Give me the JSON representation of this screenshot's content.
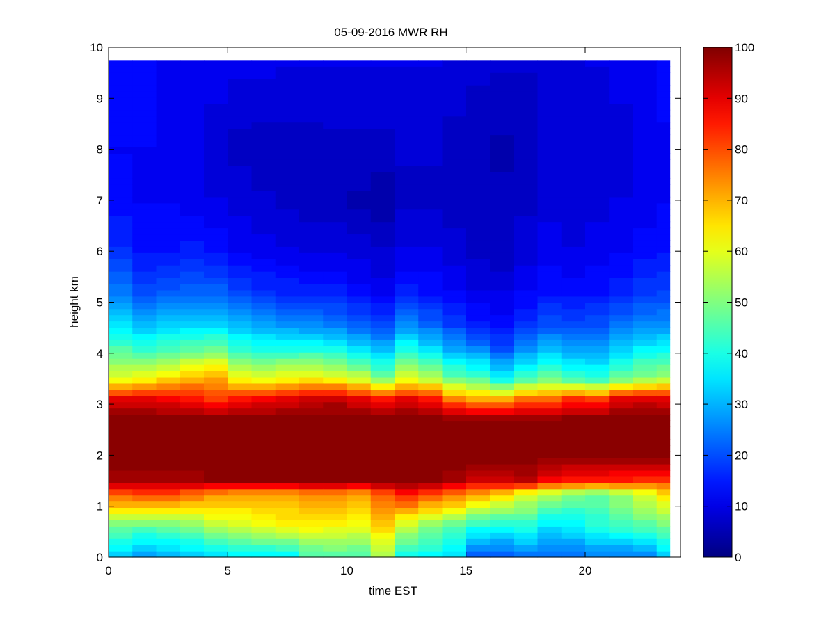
{
  "chart_data": {
    "type": "heatmap",
    "title": "05-09-2016 MWR RH",
    "xlabel": "time EST",
    "ylabel": "height km",
    "xlim": [
      0,
      24
    ],
    "ylim": [
      0,
      10
    ],
    "x_ticks": [
      "0",
      "5",
      "10",
      "15",
      "20"
    ],
    "y_ticks": [
      "0",
      "1",
      "2",
      "3",
      "4",
      "5",
      "6",
      "7",
      "8",
      "9",
      "10"
    ],
    "colorbar": {
      "min": 0,
      "max": 100,
      "ticks": [
        "0",
        "10",
        "20",
        "30",
        "40",
        "50",
        "60",
        "70",
        "80",
        "90",
        "100"
      ],
      "colormap": "jet"
    },
    "time_bins": [
      0,
      1,
      2,
      3,
      4,
      5,
      6,
      7,
      8,
      9,
      10,
      11,
      12,
      13,
      14,
      15,
      16,
      17,
      18,
      19,
      20,
      21,
      22,
      23
    ],
    "height_max_km": 9.75,
    "height_levels_km": [
      0.05,
      0.6,
      1.25,
      1.5,
      2.0,
      2.7,
      3.1,
      3.5,
      4.1,
      4.6,
      5.2,
      6.0,
      7.0,
      8.0,
      9.0,
      9.75
    ],
    "rh_percent": [
      [
        33,
        29,
        30,
        32,
        35,
        36,
        37,
        38,
        45,
        46,
        45,
        55,
        40,
        38,
        34,
        22,
        22,
        25,
        24,
        24,
        26,
        25,
        27,
        33
      ],
      [
        48,
        46,
        48,
        50,
        55,
        58,
        60,
        62,
        63,
        62,
        60,
        66,
        56,
        50,
        46,
        40,
        38,
        40,
        34,
        36,
        40,
        43,
        46,
        48
      ],
      [
        80,
        82,
        82,
        78,
        74,
        72,
        72,
        72,
        74,
        74,
        72,
        80,
        86,
        82,
        78,
        72,
        68,
        60,
        56,
        50,
        48,
        53,
        58,
        66
      ],
      [
        97,
        96,
        96,
        97,
        98,
        99,
        99,
        99,
        99,
        99,
        99,
        99,
        99,
        99,
        96,
        92,
        92,
        94,
        88,
        86,
        86,
        84,
        82,
        82
      ],
      [
        100,
        100,
        100,
        100,
        100,
        100,
        100,
        100,
        100,
        100,
        100,
        100,
        100,
        100,
        100,
        100,
        100,
        100,
        100,
        100,
        100,
        100,
        100,
        100
      ],
      [
        100,
        100,
        100,
        100,
        100,
        100,
        100,
        100,
        100,
        100,
        100,
        100,
        100,
        100,
        100,
        100,
        100,
        100,
        100,
        100,
        100,
        100,
        100,
        100
      ],
      [
        90,
        90,
        88,
        86,
        82,
        86,
        88,
        90,
        92,
        94,
        90,
        86,
        90,
        86,
        76,
        72,
        70,
        78,
        78,
        84,
        82,
        90,
        92,
        90
      ],
      [
        60,
        62,
        66,
        70,
        72,
        62,
        60,
        62,
        64,
        62,
        58,
        50,
        60,
        56,
        48,
        46,
        38,
        44,
        48,
        44,
        42,
        48,
        52,
        54
      ],
      [
        45,
        42,
        44,
        46,
        48,
        42,
        40,
        40,
        40,
        38,
        34,
        30,
        40,
        34,
        28,
        25,
        20,
        26,
        30,
        28,
        28,
        32,
        36,
        38
      ],
      [
        34,
        30,
        32,
        33,
        33,
        30,
        27,
        26,
        25,
        24,
        21,
        19,
        25,
        22,
        18,
        15,
        13,
        17,
        20,
        19,
        20,
        23,
        25,
        26
      ],
      [
        24,
        20,
        21,
        22,
        22,
        19,
        17,
        16,
        15,
        15,
        13,
        11,
        15,
        14,
        12,
        10,
        10,
        12,
        14,
        13,
        14,
        16,
        18,
        19
      ],
      [
        17,
        14,
        14,
        15,
        14,
        12,
        11,
        10,
        10,
        10,
        9,
        8,
        10,
        10,
        9,
        7,
        6,
        9,
        11,
        10,
        11,
        12,
        13,
        14
      ],
      [
        13,
        12,
        12,
        11,
        10,
        9,
        8,
        7,
        6,
        6,
        5,
        4,
        7,
        7,
        6,
        6,
        6,
        7,
        9,
        9,
        9,
        10,
        11,
        12
      ],
      [
        12,
        12,
        11,
        10,
        9,
        7,
        6,
        6,
        6,
        7,
        7,
        7,
        8,
        8,
        7,
        6,
        5,
        6,
        8,
        8,
        8,
        9,
        10,
        11
      ],
      [
        13,
        13,
        12,
        11,
        10,
        9,
        9,
        9,
        9,
        9,
        9,
        9,
        9,
        9,
        8,
        7,
        7,
        7,
        8,
        8,
        9,
        10,
        11,
        13
      ],
      [
        13,
        13,
        12,
        12,
        11,
        11,
        11,
        10,
        10,
        10,
        10,
        10,
        10,
        10,
        9,
        9,
        8,
        8,
        9,
        9,
        10,
        11,
        12,
        14
      ]
    ]
  }
}
